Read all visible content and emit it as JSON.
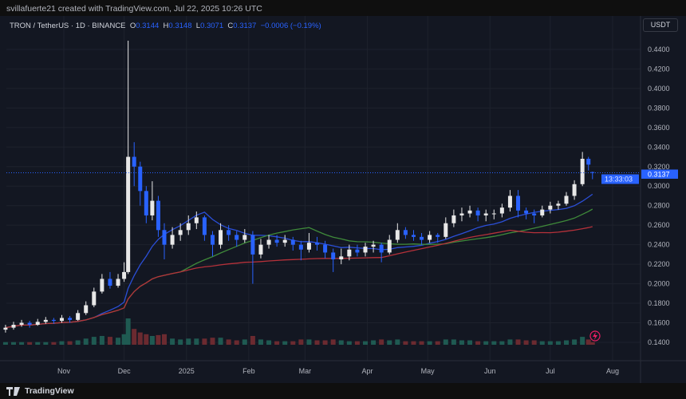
{
  "credit": "svillafuerte21 created with TradingView.com, Jul 22, 2025 10:26 UTC",
  "legend": {
    "symbol": "TRON / TetherUS · 1D · BINANCE",
    "o_label": "O",
    "o": "0.3144",
    "h_label": "H",
    "h": "0.3148",
    "l_label": "L",
    "l": "0.3071",
    "c_label": "C",
    "c": "0.3137",
    "change": "−0.0006 (−0.19%)"
  },
  "currency_button": "USDT",
  "price_label": {
    "price": "0.3137",
    "countdown": "13:33:03"
  },
  "footer": {
    "brand": "TradingView"
  },
  "colors": {
    "up": "#e8e8e8",
    "down": "#2962ff",
    "ma_fast": "#2b4fd8",
    "ma_mid": "#3f8a3a",
    "ma_slow": "#b5313a",
    "vol_up": "#1f5a52",
    "vol_down": "#6b2a30",
    "accent": "#2962ff"
  },
  "chart_data": {
    "type": "candlestick",
    "y_ticks": [
      "0.4400",
      "0.4200",
      "0.4000",
      "0.3800",
      "0.3600",
      "0.3400",
      "0.3200",
      "0.3000",
      "0.2800",
      "0.2600",
      "0.2400",
      "0.2200",
      "0.2000",
      "0.1800",
      "0.1600",
      "0.1400"
    ],
    "ylim": [
      0.14,
      0.44
    ],
    "x_ticks": [
      {
        "label": "Nov",
        "date": "2024-11-01"
      },
      {
        "label": "Dec",
        "date": "2024-12-01"
      },
      {
        "label": "2025",
        "date": "2025-01-01"
      },
      {
        "label": "Feb",
        "date": "2025-02-01"
      },
      {
        "label": "Mar",
        "date": "2025-03-01"
      },
      {
        "label": "Apr",
        "date": "2025-04-01"
      },
      {
        "label": "May",
        "date": "2025-05-01"
      },
      {
        "label": "Jun",
        "date": "2025-06-01"
      },
      {
        "label": "Jul",
        "date": "2025-07-01"
      },
      {
        "label": "Aug",
        "date": "2025-08-01"
      }
    ],
    "ohlcv": [
      [
        "2024-10-03",
        0.153,
        0.158,
        0.15,
        0.155,
        3
      ],
      [
        "2024-10-07",
        0.155,
        0.161,
        0.153,
        0.158,
        3
      ],
      [
        "2024-10-11",
        0.158,
        0.163,
        0.156,
        0.16,
        3
      ],
      [
        "2024-10-15",
        0.16,
        0.162,
        0.155,
        0.158,
        3
      ],
      [
        "2024-10-19",
        0.158,
        0.164,
        0.157,
        0.161,
        3
      ],
      [
        "2024-10-23",
        0.161,
        0.166,
        0.159,
        0.163,
        3
      ],
      [
        "2024-10-27",
        0.163,
        0.165,
        0.159,
        0.162,
        3
      ],
      [
        "2024-10-31",
        0.162,
        0.168,
        0.16,
        0.165,
        4
      ],
      [
        "2024-11-04",
        0.165,
        0.167,
        0.16,
        0.163,
        4
      ],
      [
        "2024-11-08",
        0.163,
        0.173,
        0.162,
        0.17,
        5
      ],
      [
        "2024-11-12",
        0.17,
        0.182,
        0.168,
        0.178,
        7
      ],
      [
        "2024-11-16",
        0.178,
        0.196,
        0.176,
        0.192,
        9
      ],
      [
        "2024-11-20",
        0.192,
        0.21,
        0.19,
        0.205,
        10
      ],
      [
        "2024-11-24",
        0.205,
        0.212,
        0.195,
        0.198,
        9
      ],
      [
        "2024-11-28",
        0.198,
        0.21,
        0.196,
        0.205,
        8
      ],
      [
        "2024-12-01",
        0.205,
        0.222,
        0.202,
        0.212,
        12
      ],
      [
        "2024-12-03",
        0.212,
        0.449,
        0.21,
        0.33,
        30
      ],
      [
        "2024-12-06",
        0.33,
        0.345,
        0.3,
        0.32,
        18
      ],
      [
        "2024-12-09",
        0.32,
        0.325,
        0.28,
        0.295,
        14
      ],
      [
        "2024-12-12",
        0.295,
        0.3,
        0.262,
        0.27,
        12
      ],
      [
        "2024-12-15",
        0.27,
        0.305,
        0.265,
        0.285,
        10
      ],
      [
        "2024-12-18",
        0.285,
        0.29,
        0.248,
        0.255,
        11
      ],
      [
        "2024-12-21",
        0.255,
        0.262,
        0.225,
        0.24,
        12
      ],
      [
        "2024-12-25",
        0.24,
        0.258,
        0.236,
        0.25,
        7
      ],
      [
        "2024-12-29",
        0.25,
        0.262,
        0.244,
        0.255,
        6
      ],
      [
        "2025-01-02",
        0.255,
        0.27,
        0.25,
        0.262,
        7
      ],
      [
        "2025-01-06",
        0.262,
        0.274,
        0.256,
        0.268,
        7
      ],
      [
        "2025-01-10",
        0.268,
        0.27,
        0.244,
        0.25,
        7
      ],
      [
        "2025-01-14",
        0.25,
        0.254,
        0.228,
        0.24,
        8
      ],
      [
        "2025-01-18",
        0.24,
        0.262,
        0.236,
        0.255,
        8
      ],
      [
        "2025-01-22",
        0.255,
        0.26,
        0.244,
        0.25,
        6
      ],
      [
        "2025-01-26",
        0.25,
        0.254,
        0.238,
        0.245,
        5
      ],
      [
        "2025-01-30",
        0.245,
        0.256,
        0.242,
        0.25,
        6
      ],
      [
        "2025-02-03",
        0.25,
        0.254,
        0.2,
        0.23,
        10
      ],
      [
        "2025-02-07",
        0.23,
        0.246,
        0.226,
        0.24,
        6
      ],
      [
        "2025-02-11",
        0.24,
        0.25,
        0.236,
        0.245,
        5
      ],
      [
        "2025-02-15",
        0.245,
        0.25,
        0.238,
        0.242,
        4
      ],
      [
        "2025-02-19",
        0.242,
        0.25,
        0.238,
        0.245,
        4
      ],
      [
        "2025-02-23",
        0.245,
        0.248,
        0.234,
        0.24,
        4
      ],
      [
        "2025-02-27",
        0.24,
        0.244,
        0.224,
        0.235,
        6
      ],
      [
        "2025-03-03",
        0.235,
        0.252,
        0.232,
        0.242,
        6
      ],
      [
        "2025-03-07",
        0.242,
        0.248,
        0.234,
        0.24,
        5
      ],
      [
        "2025-03-11",
        0.24,
        0.244,
        0.226,
        0.232,
        5
      ],
      [
        "2025-03-15",
        0.232,
        0.236,
        0.212,
        0.225,
        6
      ],
      [
        "2025-03-19",
        0.225,
        0.236,
        0.22,
        0.228,
        5
      ],
      [
        "2025-03-23",
        0.228,
        0.24,
        0.224,
        0.235,
        4
      ],
      [
        "2025-03-27",
        0.235,
        0.24,
        0.228,
        0.232,
        4
      ],
      [
        "2025-03-31",
        0.232,
        0.242,
        0.228,
        0.238,
        4
      ],
      [
        "2025-04-04",
        0.238,
        0.244,
        0.232,
        0.24,
        5
      ],
      [
        "2025-04-08",
        0.24,
        0.242,
        0.222,
        0.232,
        6
      ],
      [
        "2025-04-12",
        0.232,
        0.25,
        0.23,
        0.245,
        5
      ],
      [
        "2025-04-16",
        0.245,
        0.262,
        0.242,
        0.255,
        6
      ],
      [
        "2025-04-20",
        0.255,
        0.258,
        0.246,
        0.25,
        4
      ],
      [
        "2025-04-24",
        0.25,
        0.255,
        0.244,
        0.248,
        4
      ],
      [
        "2025-04-28",
        0.248,
        0.252,
        0.24,
        0.245,
        4
      ],
      [
        "2025-05-02",
        0.245,
        0.254,
        0.242,
        0.25,
        4
      ],
      [
        "2025-05-06",
        0.25,
        0.252,
        0.242,
        0.248,
        4
      ],
      [
        "2025-05-10",
        0.248,
        0.268,
        0.246,
        0.262,
        6
      ],
      [
        "2025-05-14",
        0.262,
        0.276,
        0.258,
        0.27,
        6
      ],
      [
        "2025-05-18",
        0.27,
        0.278,
        0.264,
        0.272,
        5
      ],
      [
        "2025-05-22",
        0.272,
        0.28,
        0.268,
        0.275,
        5
      ],
      [
        "2025-05-26",
        0.275,
        0.278,
        0.264,
        0.27,
        4
      ],
      [
        "2025-05-30",
        0.27,
        0.276,
        0.264,
        0.272,
        4
      ],
      [
        "2025-06-03",
        0.272,
        0.276,
        0.266,
        0.272,
        4
      ],
      [
        "2025-06-07",
        0.272,
        0.282,
        0.268,
        0.278,
        4
      ],
      [
        "2025-06-11",
        0.278,
        0.296,
        0.274,
        0.29,
        6
      ],
      [
        "2025-06-15",
        0.29,
        0.296,
        0.268,
        0.275,
        6
      ],
      [
        "2025-06-19",
        0.275,
        0.278,
        0.266,
        0.272,
        5
      ],
      [
        "2025-06-23",
        0.272,
        0.276,
        0.262,
        0.27,
        5
      ],
      [
        "2025-06-27",
        0.27,
        0.28,
        0.268,
        0.276,
        4
      ],
      [
        "2025-07-01",
        0.276,
        0.284,
        0.272,
        0.28,
        4
      ],
      [
        "2025-07-05",
        0.28,
        0.285,
        0.276,
        0.282,
        4
      ],
      [
        "2025-07-09",
        0.282,
        0.294,
        0.28,
        0.29,
        5
      ],
      [
        "2025-07-13",
        0.29,
        0.306,
        0.286,
        0.302,
        6
      ],
      [
        "2025-07-17",
        0.302,
        0.335,
        0.3,
        0.328,
        9
      ],
      [
        "2025-07-20",
        0.328,
        0.33,
        0.316,
        0.322,
        6
      ],
      [
        "2025-07-22",
        0.3144,
        0.3148,
        0.3071,
        0.3137,
        3
      ]
    ]
  }
}
